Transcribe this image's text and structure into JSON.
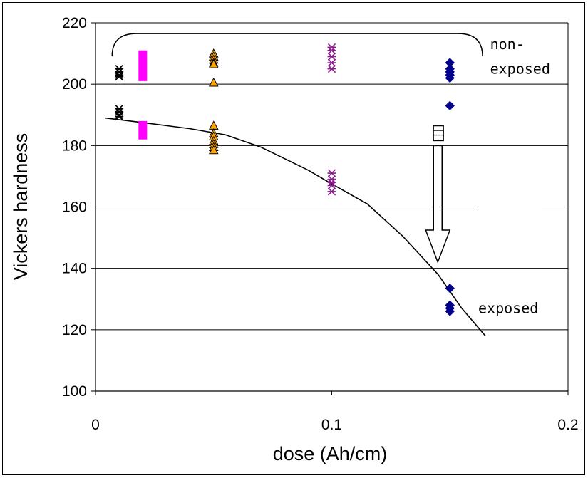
{
  "chart_data": {
    "type": "scatter",
    "xlabel": "dose (Ah/cm)",
    "ylabel": "Vickers hardness",
    "xlim": [
      0,
      0.2
    ],
    "ylim": [
      100,
      220
    ],
    "xticks": [
      "0",
      "0.1",
      "0.2"
    ],
    "yticks": [
      "100",
      "120",
      "140",
      "160",
      "180",
      "200",
      "220"
    ],
    "grid": "horizontal",
    "series": [
      {
        "marker": "x-star",
        "color": "#000000",
        "points": [
          [
            0.01,
            205
          ],
          [
            0.01,
            204
          ],
          [
            0.01,
            203
          ],
          [
            0.01,
            202.5
          ],
          [
            0.01,
            192
          ],
          [
            0.01,
            191
          ],
          [
            0.01,
            190
          ],
          [
            0.01,
            189.5
          ]
        ]
      },
      {
        "marker": "bar",
        "color": "#ff00ff",
        "ranges": [
          [
            0.02,
            201,
            211
          ],
          [
            0.02,
            182,
            188
          ]
        ]
      },
      {
        "marker": "triangle",
        "color": "#ffa500",
        "points": [
          [
            0.05,
            210
          ],
          [
            0.05,
            209
          ],
          [
            0.05,
            208
          ],
          [
            0.05,
            207
          ],
          [
            0.05,
            206.5
          ],
          [
            0.05,
            200.5
          ],
          [
            0.05,
            186.5
          ],
          [
            0.05,
            184
          ],
          [
            0.05,
            183
          ],
          [
            0.05,
            181.5
          ],
          [
            0.05,
            180.5
          ],
          [
            0.05,
            179.5
          ],
          [
            0.05,
            178.5
          ]
        ]
      },
      {
        "marker": "x-star",
        "color": "#8b1f8b",
        "points": [
          [
            0.1,
            212
          ],
          [
            0.1,
            211
          ],
          [
            0.1,
            209
          ],
          [
            0.1,
            207
          ],
          [
            0.1,
            205
          ],
          [
            0.1,
            171
          ],
          [
            0.1,
            169
          ],
          [
            0.1,
            168
          ],
          [
            0.1,
            167
          ],
          [
            0.1,
            165
          ]
        ]
      },
      {
        "marker": "diamond",
        "color": "#00008b",
        "points": [
          [
            0.15,
            207
          ],
          [
            0.15,
            205
          ],
          [
            0.15,
            204
          ],
          [
            0.15,
            203
          ],
          [
            0.15,
            202
          ],
          [
            0.15,
            193
          ],
          [
            0.15,
            133.5
          ],
          [
            0.15,
            128
          ],
          [
            0.15,
            127
          ],
          [
            0.15,
            126
          ]
        ]
      },
      {
        "marker": "square-open",
        "color": "#000000",
        "points": [
          [
            0.15,
            185.5
          ],
          [
            0.15,
            184
          ],
          [
            0.15,
            182.5
          ]
        ]
      }
    ],
    "trend_line": [
      [
        0.004,
        189
      ],
      [
        0.02,
        187.5
      ],
      [
        0.04,
        185.5
      ],
      [
        0.055,
        183.5
      ],
      [
        0.07,
        179.5
      ],
      [
        0.09,
        172
      ],
      [
        0.1,
        167.5
      ],
      [
        0.115,
        161
      ],
      [
        0.13,
        150.5
      ],
      [
        0.145,
        138
      ],
      [
        0.155,
        127
      ],
      [
        0.165,
        118
      ]
    ],
    "annotations": [
      {
        "text": "non-",
        "x": 0.167,
        "y": 213
      },
      {
        "text": "exposed",
        "x": 0.167,
        "y": 205
      },
      {
        "text": "exposed",
        "x": 0.162,
        "y": 127
      }
    ],
    "bracket": {
      "x1": 0.004,
      "x2": 0.162,
      "y": 216.5
    },
    "arrow": {
      "x": 0.15,
      "y_from": 180,
      "y_to": 142
    }
  }
}
